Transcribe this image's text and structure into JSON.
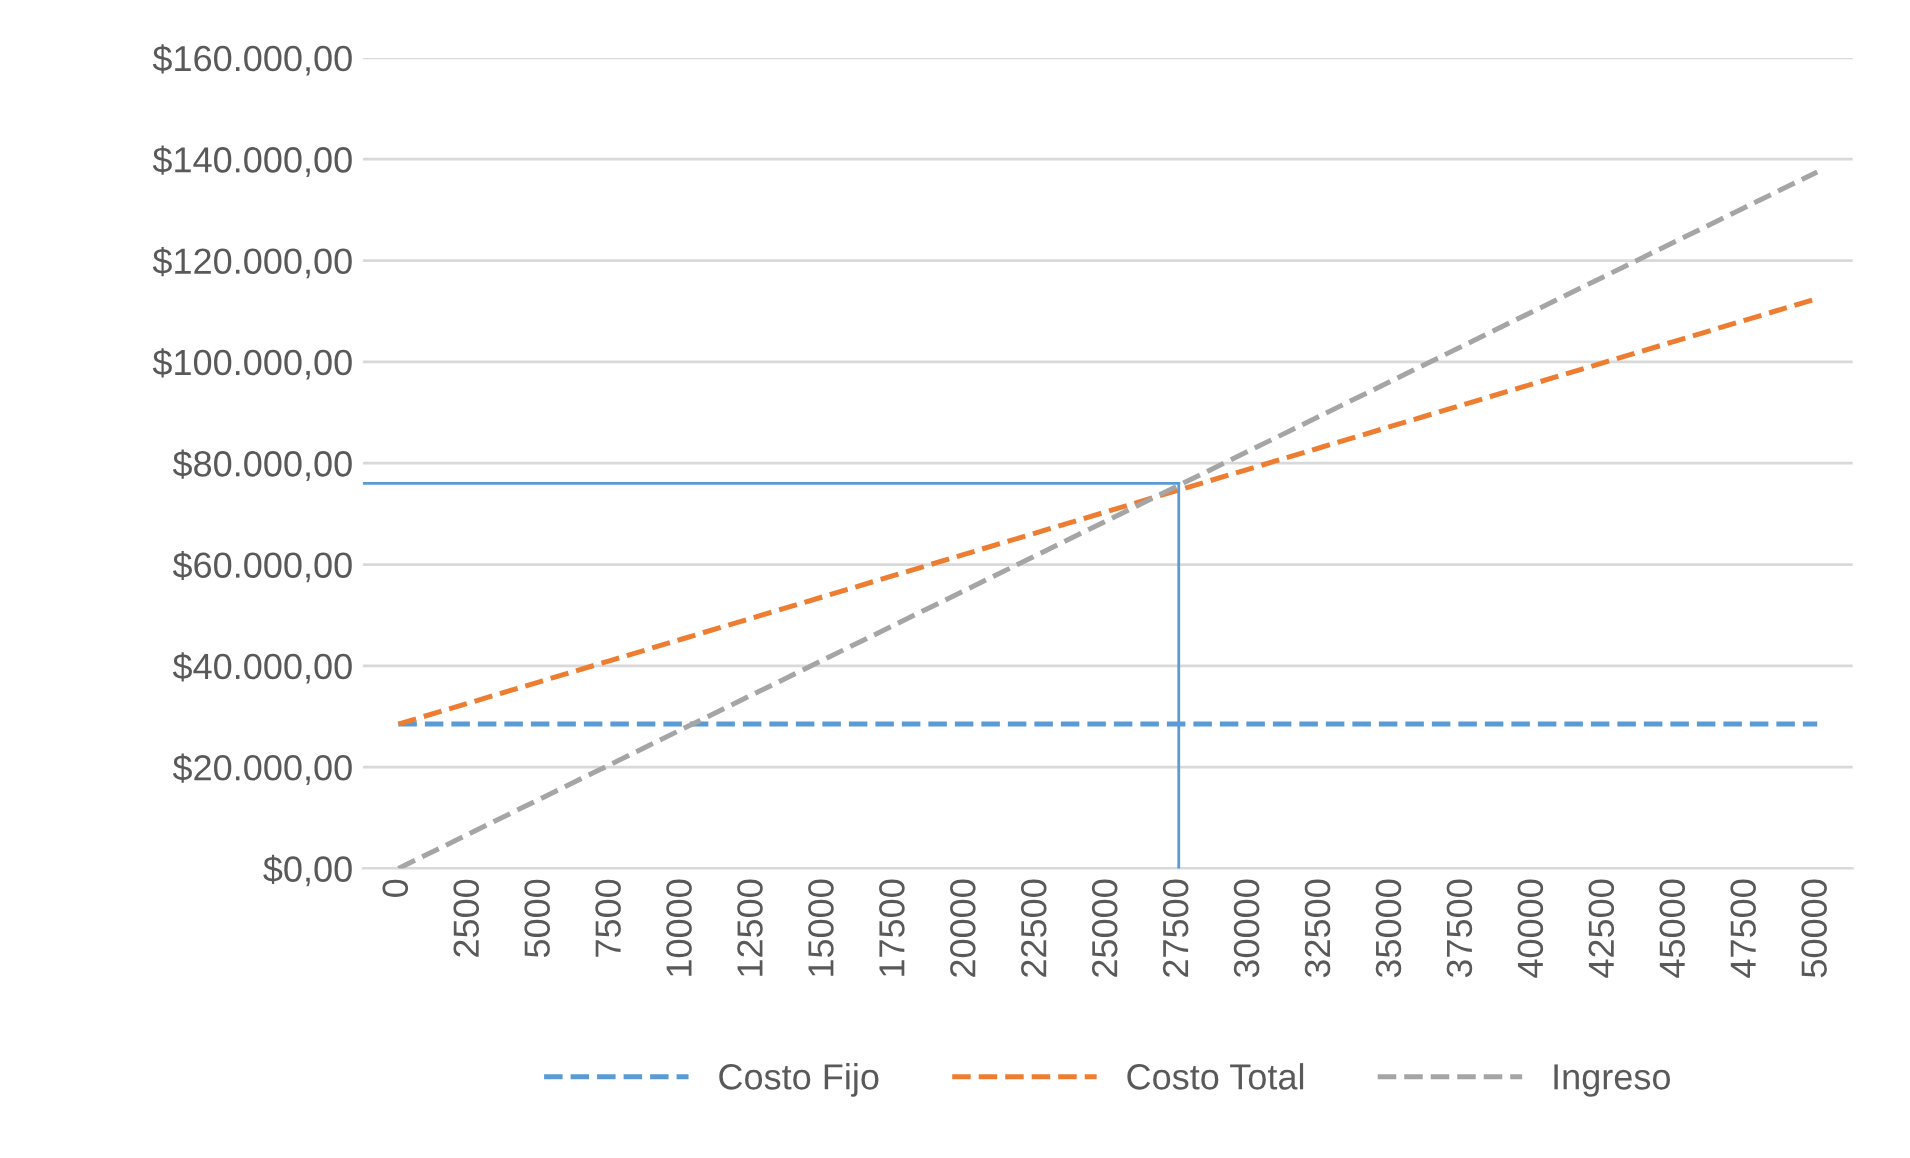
{
  "chart_data": {
    "type": "line",
    "x": [
      0,
      2500,
      5000,
      7500,
      10000,
      12500,
      15000,
      17500,
      20000,
      22500,
      25000,
      27500,
      30000,
      32500,
      35000,
      37500,
      40000,
      42500,
      45000,
      47500,
      50000
    ],
    "series": [
      {
        "name": "Costo Fijo",
        "color": "#5b9bd5",
        "values": [
          28500,
          28500,
          28500,
          28500,
          28500,
          28500,
          28500,
          28500,
          28500,
          28500,
          28500,
          28500,
          28500,
          28500,
          28500,
          28500,
          28500,
          28500,
          28500,
          28500,
          28500
        ]
      },
      {
        "name": "Costo Total",
        "color": "#ed7d31",
        "values": [
          28500,
          32700,
          36900,
          41100,
          45300,
          49500,
          53700,
          57900,
          62100,
          66300,
          70500,
          74700,
          78900,
          83100,
          87300,
          91500,
          95700,
          99900,
          104100,
          108300,
          112500
        ]
      },
      {
        "name": "Ingreso",
        "color": "#a5a5a5",
        "values": [
          0,
          6875,
          13750,
          20625,
          27500,
          34375,
          41250,
          48125,
          55000,
          61875,
          68750,
          75625,
          82500,
          89375,
          96250,
          103125,
          110000,
          116875,
          123750,
          130625,
          137500
        ]
      }
    ],
    "xlim": [
      -1250,
      51250
    ],
    "xticks": [
      0,
      2500,
      5000,
      7500,
      10000,
      12500,
      15000,
      17500,
      20000,
      22500,
      25000,
      27500,
      30000,
      32500,
      35000,
      37500,
      40000,
      42500,
      45000,
      47500,
      50000
    ],
    "ylim": [
      0,
      160000
    ],
    "yticks": [
      {
        "value": 0,
        "label": "$0,00"
      },
      {
        "value": 20000,
        "label": "$20.000,00"
      },
      {
        "value": 40000,
        "label": "$40.000,00"
      },
      {
        "value": 60000,
        "label": "$60.000,00"
      },
      {
        "value": 80000,
        "label": "$80.000,00"
      },
      {
        "value": 100000,
        "label": "$100.000,00"
      },
      {
        "value": 120000,
        "label": "$120.000,00"
      },
      {
        "value": 140000,
        "label": "$140.000,00"
      },
      {
        "value": 160000,
        "label": "$160.000,00"
      }
    ],
    "ref_lines": [
      {
        "axis": "y",
        "value": 76000,
        "color": "#5b9bd5",
        "line_style": "solid"
      },
      {
        "axis": "x",
        "value": 27500,
        "color": "#5b9bd5",
        "line_style": "solid"
      }
    ],
    "grid": "y",
    "legend": "bottom",
    "line_style": "dashed",
    "marker": "none"
  }
}
